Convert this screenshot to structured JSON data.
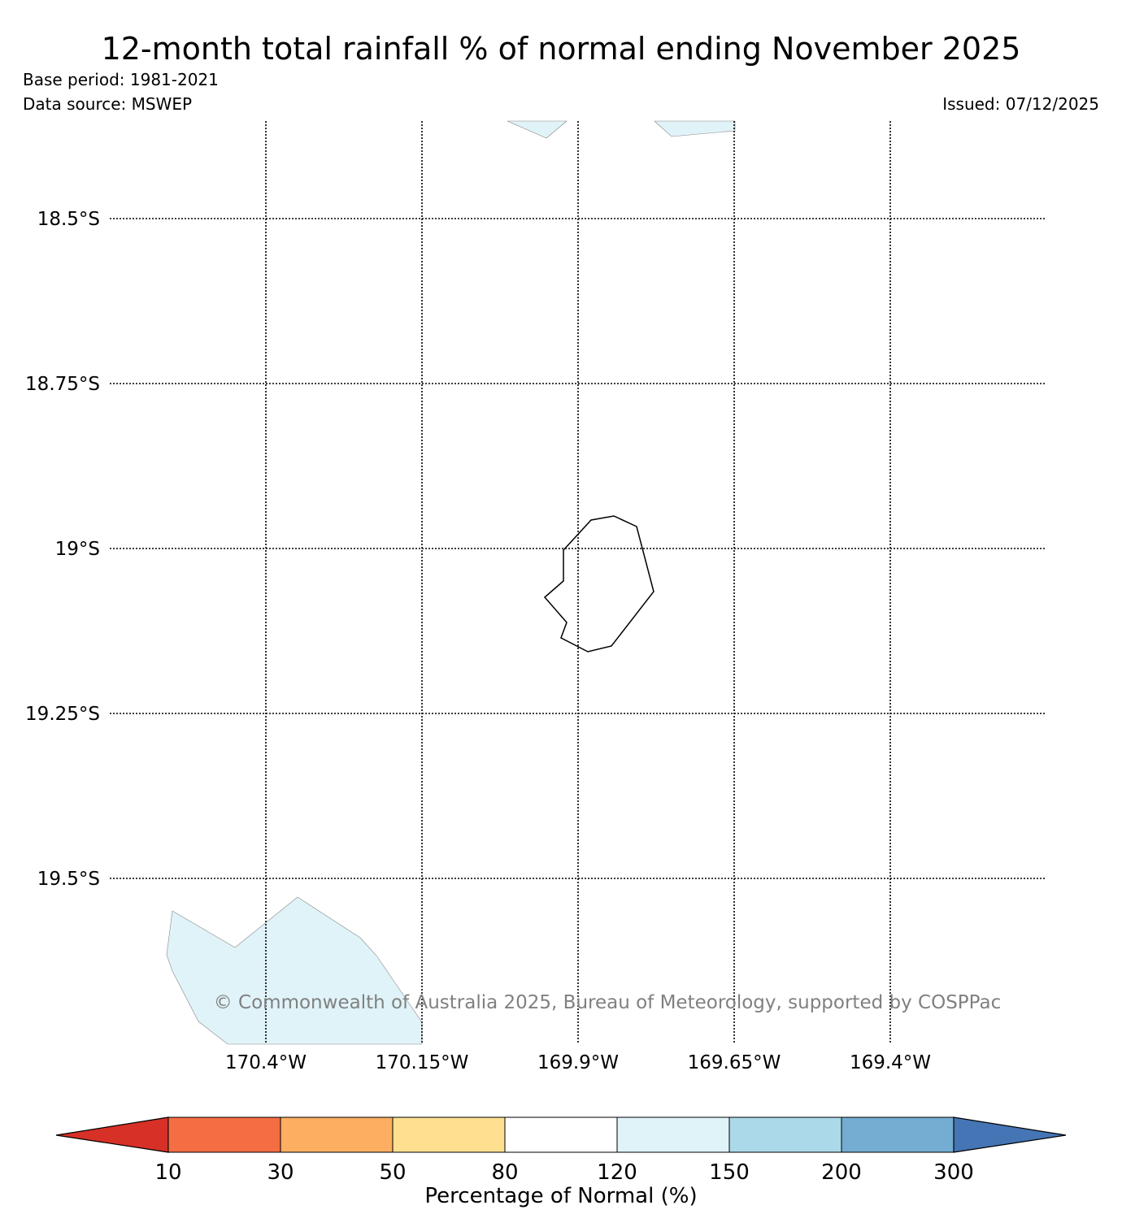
{
  "title": "12-month total rainfall % of normal ending November 2025",
  "base_period": "Base period: 1981-2021",
  "data_source": "Data source: MSWEP",
  "issued": "Issued: 07/12/2025",
  "copyright": "© Commonwealth of Australia 2025, Bureau of Meteorology, supported by COSPPac",
  "map": {
    "lat_labels": [
      "18.5°S",
      "18.75°S",
      "19°S",
      "19.25°S",
      "19.5°S"
    ],
    "lon_labels": [
      "170.4°W",
      "170.15°W",
      "169.9°W",
      "169.65°W",
      "169.4°W"
    ],
    "grid": "dotted"
  },
  "colorbar": {
    "label": "Percentage of Normal (%)",
    "ticks": [
      "10",
      "30",
      "50",
      "80",
      "120",
      "150",
      "200",
      "300"
    ],
    "colors": [
      "#d73027",
      "#f46d43",
      "#fdae61",
      "#fee090",
      "#ffffff",
      "#e0f3f8",
      "#abd9e9",
      "#74add1",
      "#4575b4"
    ]
  },
  "colors": {
    "shaded_region": "#e0f3f8",
    "coastline": "#000000"
  }
}
